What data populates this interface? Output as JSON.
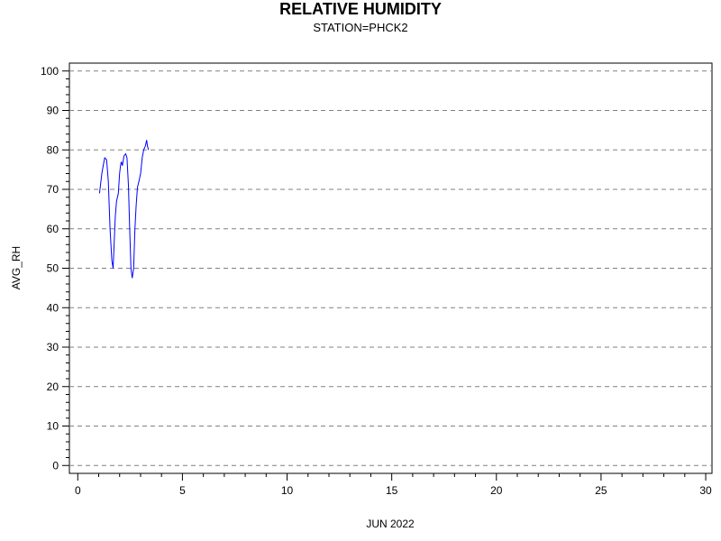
{
  "chart_data": {
    "type": "line",
    "title": "RELATIVE HUMIDITY",
    "subtitle": "STATION=PHCK2",
    "xlabel": "JUN 2022",
    "ylabel": "AVG_RH",
    "xlim": [
      -0.4,
      30.3
    ],
    "ylim": [
      -2,
      102
    ],
    "x_ticks": [
      0,
      5,
      10,
      15,
      20,
      25,
      30
    ],
    "y_ticks": [
      0,
      10,
      20,
      30,
      40,
      50,
      60,
      70,
      80,
      90,
      100
    ],
    "grid": "horizontal-dashed",
    "line_color": "#0000ff",
    "series": [
      {
        "x": [
          1.04,
          1.15,
          1.25,
          1.29,
          1.38,
          1.46,
          1.54,
          1.63,
          1.69,
          1.79,
          1.85,
          1.94,
          2.0,
          2.04,
          2.08,
          2.13,
          2.21,
          2.29,
          2.35,
          2.42,
          2.48,
          2.54,
          2.6,
          2.67,
          2.73,
          2.79,
          2.85,
          2.92,
          3.0,
          3.08,
          3.15,
          3.23,
          3.29,
          3.33,
          3.38
        ],
        "y": [
          69,
          74,
          77,
          78,
          77.5,
          72,
          60,
          52,
          50,
          63,
          67,
          69,
          74,
          76,
          77,
          76,
          78.5,
          79,
          78,
          71,
          60,
          50,
          47.5,
          50,
          60,
          66,
          70.5,
          72,
          74,
          78,
          80,
          81,
          82.5,
          81,
          80
        ]
      }
    ]
  }
}
